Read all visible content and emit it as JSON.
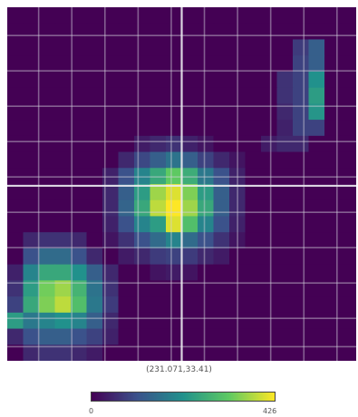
{
  "chart_data": {
    "type": "heatmap",
    "colormap": "viridis",
    "cell_values_normalized": [
      [
        0,
        0,
        0,
        0,
        0,
        0,
        0,
        0,
        0,
        0,
        0,
        0,
        0,
        0,
        0,
        0,
        0,
        0,
        0,
        0,
        0,
        0
      ],
      [
        0,
        0,
        0,
        0,
        0,
        0,
        0,
        0,
        0,
        0,
        0,
        0,
        0,
        0,
        0,
        0,
        0,
        0,
        0,
        0,
        0,
        0
      ],
      [
        0,
        0,
        0,
        0,
        0,
        0,
        0,
        0,
        0,
        0,
        0,
        0,
        0,
        0,
        0,
        0,
        0,
        0,
        0.18,
        0.3,
        0,
        0
      ],
      [
        0,
        0,
        0,
        0,
        0,
        0,
        0,
        0,
        0,
        0,
        0,
        0,
        0,
        0,
        0,
        0,
        0,
        0,
        0.2,
        0.3,
        0,
        0
      ],
      [
        0,
        0,
        0,
        0,
        0,
        0,
        0,
        0,
        0,
        0,
        0,
        0,
        0,
        0,
        0,
        0,
        0,
        0.15,
        0.2,
        0.5,
        0,
        0
      ],
      [
        0,
        0,
        0,
        0,
        0,
        0,
        0,
        0,
        0,
        0,
        0,
        0,
        0,
        0,
        0,
        0,
        0,
        0.15,
        0.2,
        0.55,
        0,
        0
      ],
      [
        0,
        0,
        0,
        0,
        0,
        0,
        0,
        0,
        0,
        0,
        0,
        0,
        0,
        0,
        0,
        0,
        0,
        0.12,
        0.2,
        0.52,
        0,
        0
      ],
      [
        0,
        0,
        0,
        0,
        0,
        0,
        0,
        0,
        0,
        0,
        0,
        0,
        0,
        0,
        0,
        0,
        0,
        0.1,
        0.2,
        0.2,
        0,
        0
      ],
      [
        0,
        0,
        0,
        0,
        0,
        0,
        0,
        0,
        0.08,
        0.12,
        0.15,
        0.1,
        0.06,
        0,
        0,
        0,
        0.08,
        0.12,
        0.12,
        0,
        0,
        0
      ],
      [
        0,
        0,
        0,
        0,
        0,
        0,
        0,
        0.12,
        0.22,
        0.3,
        0.38,
        0.3,
        0.2,
        0.12,
        0.06,
        0,
        0,
        0,
        0,
        0,
        0,
        0
      ],
      [
        0,
        0,
        0,
        0,
        0,
        0,
        0.1,
        0.25,
        0.45,
        0.6,
        0.75,
        0.62,
        0.4,
        0.25,
        0.1,
        0,
        0,
        0,
        0,
        0,
        0,
        0
      ],
      [
        0,
        0,
        0,
        0,
        0,
        0,
        0.12,
        0.3,
        0.55,
        0.85,
        0.95,
        0.8,
        0.55,
        0.3,
        0.12,
        0,
        0,
        0,
        0,
        0,
        0,
        0
      ],
      [
        0,
        0,
        0,
        0,
        0,
        0,
        0.12,
        0.32,
        0.6,
        0.9,
        1.0,
        0.85,
        0.6,
        0.3,
        0.12,
        0,
        0,
        0,
        0,
        0,
        0,
        0
      ],
      [
        0,
        0,
        0,
        0,
        0,
        0,
        0.1,
        0.25,
        0.45,
        0.55,
        0.95,
        0.7,
        0.45,
        0.25,
        0.1,
        0,
        0,
        0,
        0,
        0,
        0,
        0
      ],
      [
        0,
        0.12,
        0.15,
        0.15,
        0.12,
        0,
        0.06,
        0.15,
        0.25,
        0.35,
        0.45,
        0.35,
        0.25,
        0.15,
        0.06,
        0,
        0,
        0,
        0,
        0,
        0,
        0
      ],
      [
        0,
        0.25,
        0.35,
        0.35,
        0.25,
        0.12,
        0,
        0.08,
        0.12,
        0.18,
        0.2,
        0.18,
        0.12,
        0.08,
        0,
        0,
        0,
        0,
        0,
        0,
        0,
        0
      ],
      [
        0.1,
        0.45,
        0.6,
        0.6,
        0.5,
        0.3,
        0.12,
        0,
        0,
        0.06,
        0.08,
        0.06,
        0,
        0,
        0,
        0,
        0,
        0,
        0,
        0,
        0,
        0
      ],
      [
        0.15,
        0.55,
        0.78,
        0.85,
        0.65,
        0.38,
        0.15,
        0,
        0,
        0,
        0,
        0,
        0,
        0,
        0,
        0,
        0,
        0,
        0,
        0,
        0,
        0
      ],
      [
        0.2,
        0.6,
        0.8,
        0.9,
        0.7,
        0.4,
        0.18,
        0,
        0,
        0,
        0,
        0,
        0,
        0,
        0,
        0,
        0,
        0,
        0,
        0,
        0,
        0
      ],
      [
        0.55,
        0.4,
        0.45,
        0.5,
        0.45,
        0.3,
        0.12,
        0,
        0,
        0,
        0,
        0,
        0,
        0,
        0,
        0,
        0,
        0,
        0,
        0,
        0,
        0
      ],
      [
        0.12,
        0.25,
        0.3,
        0.3,
        0.25,
        0.2,
        0.1,
        0,
        0,
        0,
        0,
        0,
        0,
        0,
        0,
        0,
        0,
        0,
        0,
        0,
        0,
        0
      ],
      [
        0,
        0.12,
        0.15,
        0.15,
        0.12,
        0.08,
        0,
        0,
        0,
        0,
        0,
        0,
        0,
        0,
        0,
        0,
        0,
        0,
        0,
        0,
        0,
        0
      ]
    ],
    "colorbar": {
      "min_label": "0",
      "max_label": "426",
      "min": 0,
      "max": 426
    },
    "grid": true,
    "crosshair": true
  },
  "viewer": {
    "coordinate_readout": "(231.071,33.41)"
  }
}
